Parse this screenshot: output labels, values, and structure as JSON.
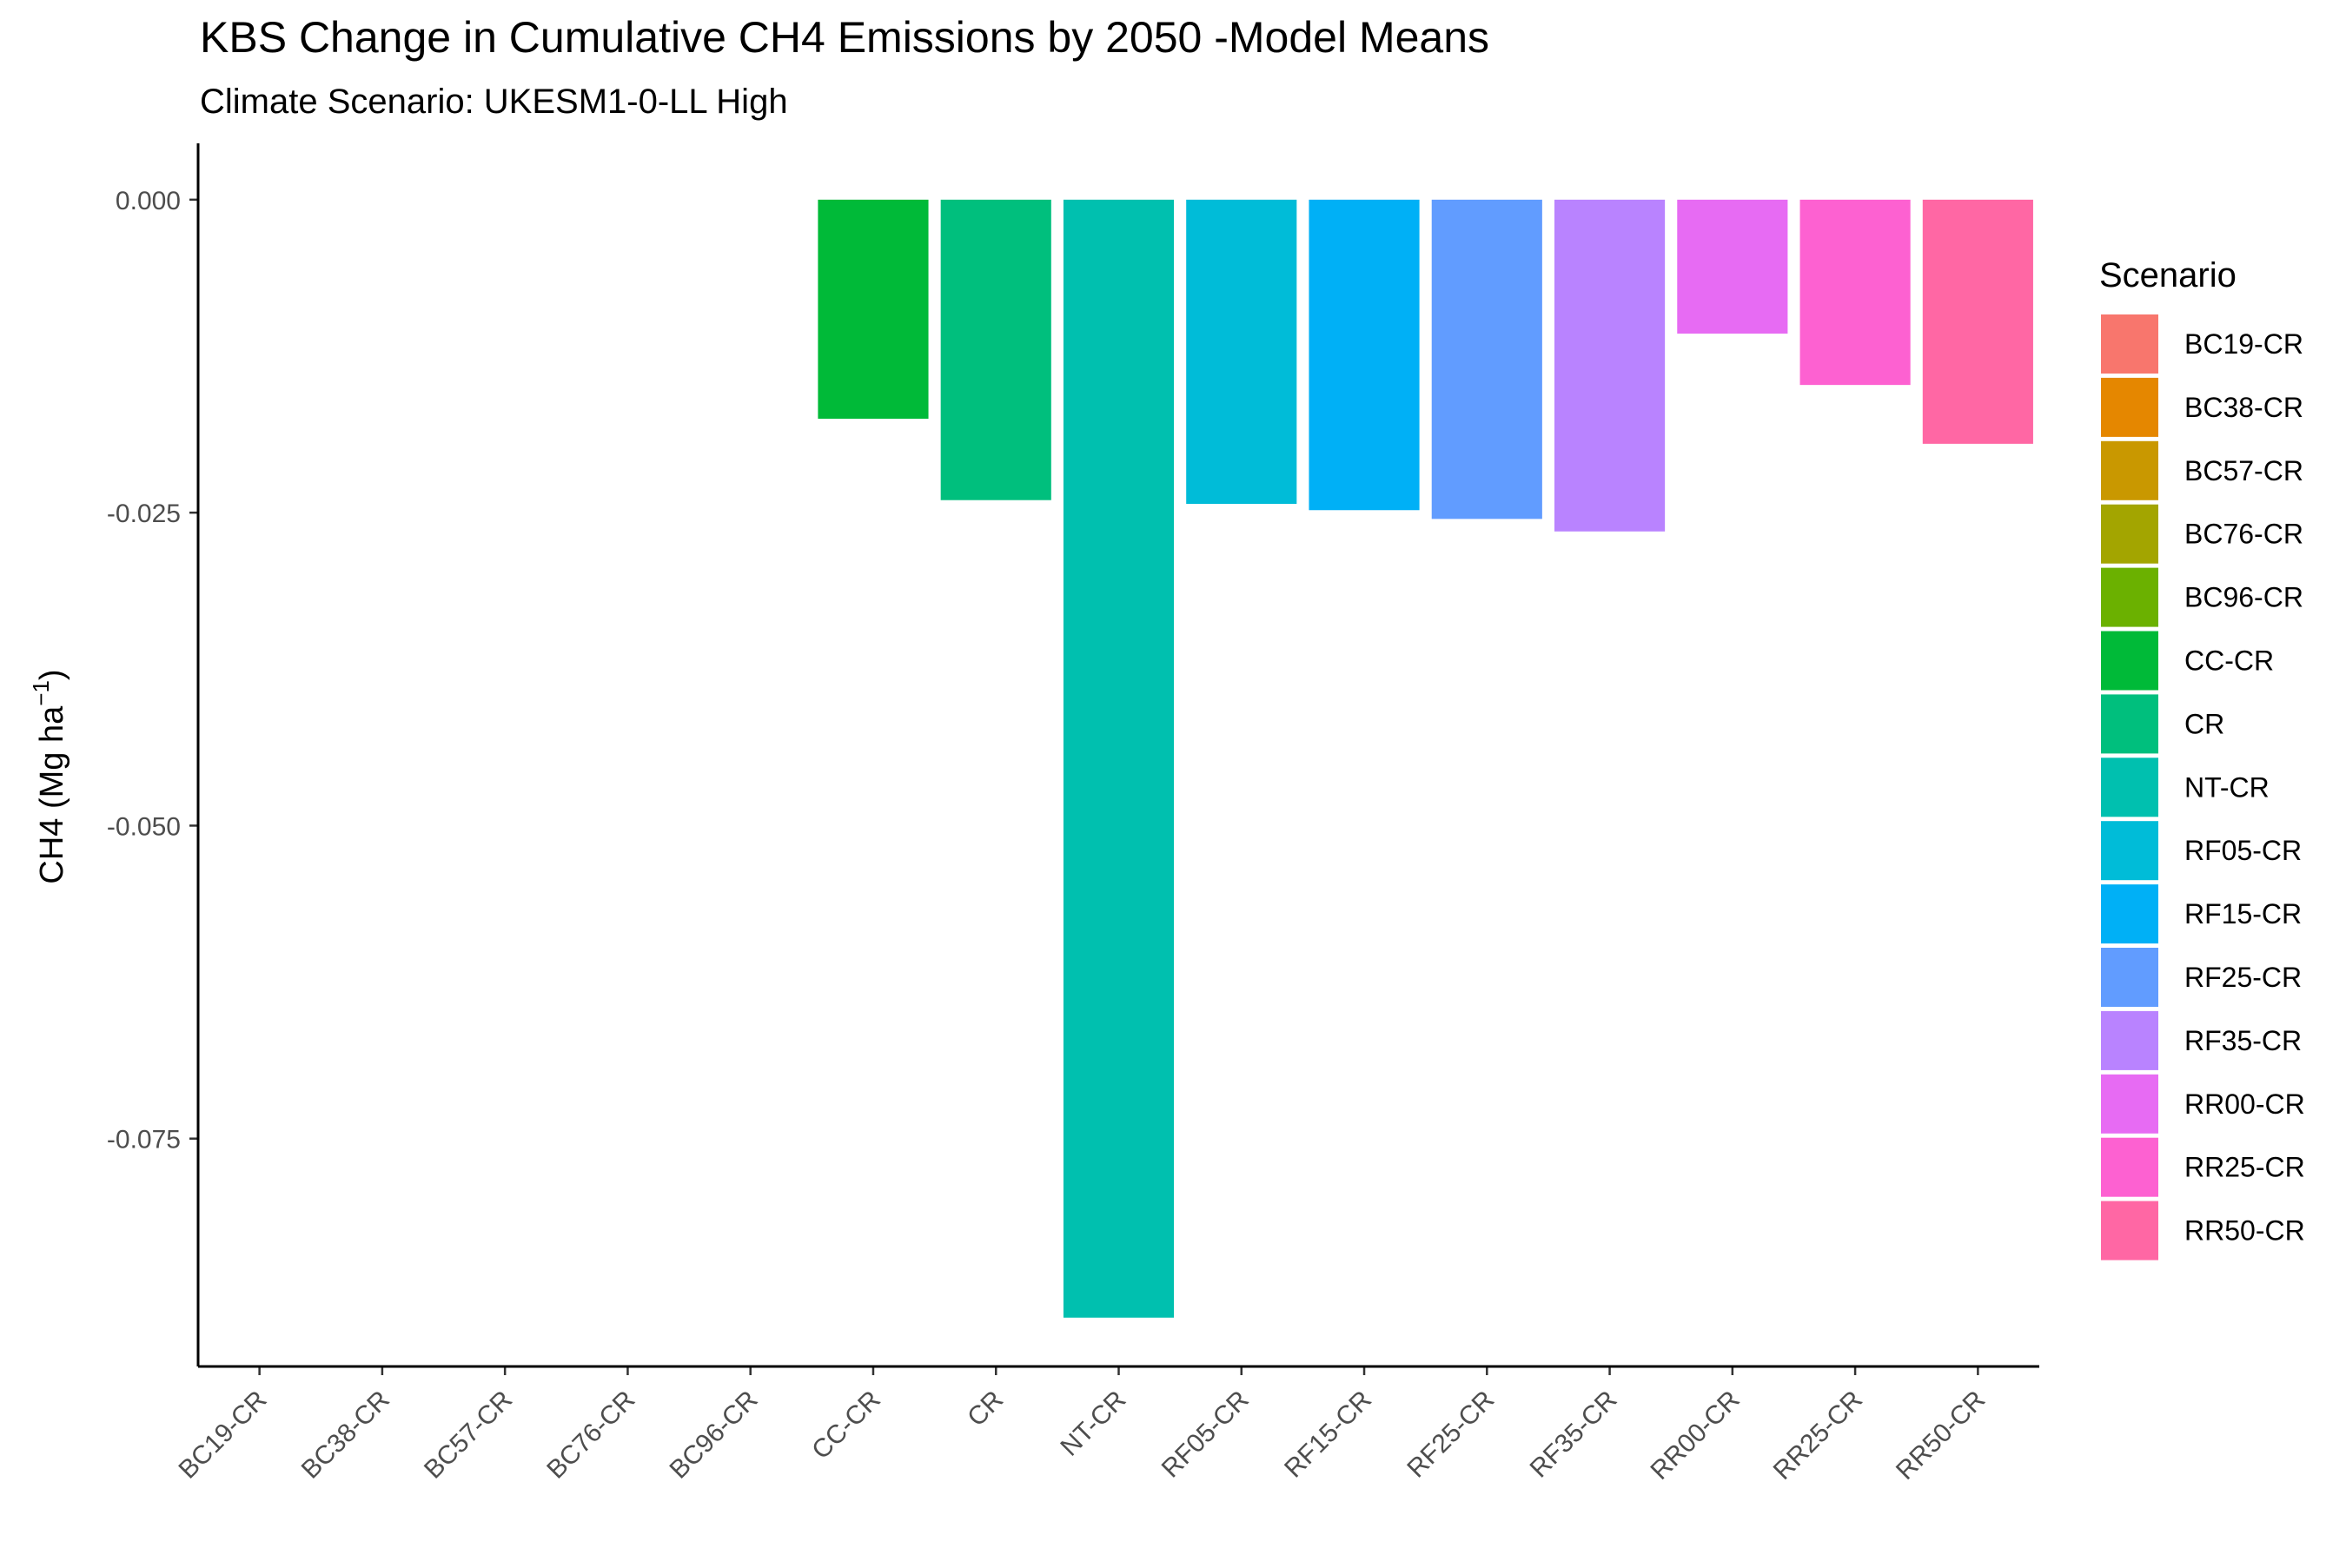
{
  "chart_data": {
    "type": "bar",
    "title": "KBS Change in Cumulative CH4 Emissions by  2050 -Model Means",
    "subtitle": "Climate Scenario: UKESM1-0-LL High",
    "xlabel": "",
    "ylabel": "CH4 (Mg ha",
    "ylabel_superscript": "−1",
    "ylabel_close": ")",
    "ylim": [
      -0.0932,
      0.0045
    ],
    "yticks": [
      0.0,
      -0.025,
      -0.05,
      -0.075
    ],
    "ytick_labels": [
      "0.000",
      "-0.025",
      "-0.050",
      "-0.075"
    ],
    "grid": false,
    "legend_title": "Scenario",
    "legend_position": "right",
    "categories": [
      "BC19-CR",
      "BC38-CR",
      "BC57-CR",
      "BC76-CR",
      "BC96-CR",
      "CC-CR",
      "CR",
      "NT-CR",
      "RF05-CR",
      "RF15-CR",
      "RF25-CR",
      "RF35-CR",
      "RR00-CR",
      "RR25-CR",
      "RR50-CR"
    ],
    "values": [
      0,
      0,
      0,
      0,
      0,
      -0.0175,
      -0.024,
      -0.0893,
      -0.0243,
      -0.0248,
      -0.0255,
      -0.0265,
      -0.0107,
      -0.0148,
      -0.0195
    ],
    "colors": [
      "#F8766D",
      "#E58700",
      "#C99800",
      "#A3A500",
      "#6BB100",
      "#00BA38",
      "#00BF7D",
      "#00C0AF",
      "#00BCD8",
      "#00B0F6",
      "#619CFF",
      "#B983FF",
      "#E76BF3",
      "#FD61D1",
      "#FF67A4"
    ]
  }
}
